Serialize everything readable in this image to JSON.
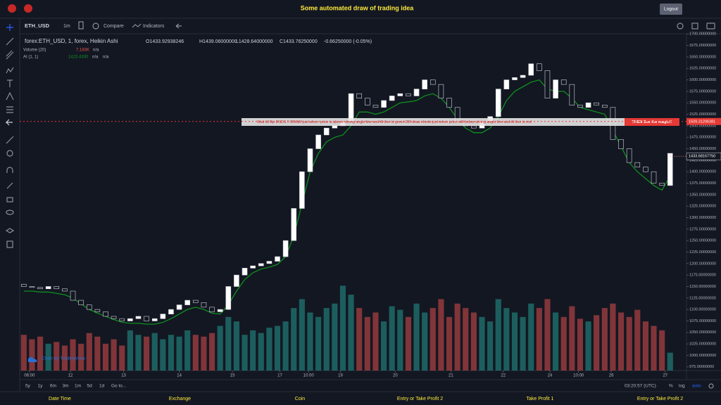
{
  "header": {
    "title": "Some automated draw of trading idea",
    "logout": "Logout"
  },
  "toolbar": {
    "symbol": "ETH_USD",
    "interval": "1m",
    "compare": "Compare",
    "indicators": "Indicators"
  },
  "legend": {
    "symbol": "forex:ETH_USD, 1, forex, Heikin Ashi",
    "open": "O1433.92938246",
    "high": "H1439.06000000",
    "low": "L1428.64000000",
    "close": "C1433.76250000",
    "change": "-0.66250000 (-0.05%)",
    "volume_name": "Volume (20)",
    "volume_value": "7.183K",
    "volume_ma": "n/a",
    "ai_name": "AI (1, 1)",
    "ai_value": "1423.4300",
    "ai_na1": "n/a",
    "ai_na2": "n/a"
  },
  "annotation": {
    "text": "Wait till flip ENDS !!   DRAW just when:  price is above strong angle line and AI line is green        DR       draw shorts just when price still below strong angle line and AI line is red",
    "callout": "THEN See the magic!!"
  },
  "chart_data": {
    "type": "candlestick",
    "ylim": [
      967,
      1705
    ],
    "yticks": [
      {
        "value": 975,
        "label": "975.00000000"
      },
      {
        "value": 1000,
        "label": "1000.00000000"
      },
      {
        "value": 1025,
        "label": "1025.00000000"
      },
      {
        "value": 1050,
        "label": "1050.00000000"
      },
      {
        "value": 1075,
        "label": "1075.00000000"
      },
      {
        "value": 1100,
        "label": "1100.00000000"
      },
      {
        "value": 1125,
        "label": "1125.00000000"
      },
      {
        "value": 1150,
        "label": "1150.00000000"
      },
      {
        "value": 1175,
        "label": "1175.00000000"
      },
      {
        "value": 1200,
        "label": "1200.00000000"
      },
      {
        "value": 1225,
        "label": "1225.00000000"
      },
      {
        "value": 1250,
        "label": "1250.00000000"
      },
      {
        "value": 1275,
        "label": "1275.00000000"
      },
      {
        "value": 1300,
        "label": "1300.00000000"
      },
      {
        "value": 1325,
        "label": "1325.00000000"
      },
      {
        "value": 1350,
        "label": "1350.00000000"
      },
      {
        "value": 1375,
        "label": "1375.00000000"
      },
      {
        "value": 1400,
        "label": "1400.00000000"
      },
      {
        "value": 1425,
        "label": "1425.00000000"
      },
      {
        "value": 1450,
        "label": "1450.00000000"
      },
      {
        "value": 1475,
        "label": "1475.00000000"
      },
      {
        "value": 1500,
        "label": "1500.00000000"
      },
      {
        "value": 1525,
        "label": "1525.00000000"
      },
      {
        "value": 1550,
        "label": "1550.00000000"
      },
      {
        "value": 1575,
        "label": "1575.00000000"
      },
      {
        "value": 1600,
        "label": "1600.00000000"
      },
      {
        "value": 1625,
        "label": "1625.00000000"
      },
      {
        "value": 1650,
        "label": "1650.00000000"
      },
      {
        "value": 1675,
        "label": "1675.00000000"
      },
      {
        "value": 1700,
        "label": "1700.00000000"
      }
    ],
    "xlim": [
      -0.5,
      81
    ],
    "xticks": [
      {
        "value": 0.7,
        "label": "06:00"
      },
      {
        "value": 5.7,
        "label": "12"
      },
      {
        "value": 12.2,
        "label": "13"
      },
      {
        "value": 19,
        "label": "14"
      },
      {
        "value": 25.5,
        "label": "15"
      },
      {
        "value": 31.3,
        "label": "17"
      },
      {
        "value": 34.8,
        "label": "10:00"
      },
      {
        "value": 38.7,
        "label": "19"
      },
      {
        "value": 45.4,
        "label": "20"
      },
      {
        "value": 52.2,
        "label": "21"
      },
      {
        "value": 58.6,
        "label": "22"
      },
      {
        "value": 64.3,
        "label": "24"
      },
      {
        "value": 67.8,
        "label": "10:00"
      },
      {
        "value": 71.8,
        "label": "26"
      },
      {
        "value": 78.4,
        "label": "27"
      }
    ],
    "open": [
      1155,
      1150,
      1148,
      1145,
      1150,
      1145,
      1140,
      1120,
      1110,
      1100,
      1095,
      1085,
      1080,
      1075,
      1080,
      1085,
      1075,
      1080,
      1090,
      1100,
      1110,
      1120,
      1115,
      1105,
      1095,
      1100,
      1150,
      1175,
      1190,
      1195,
      1200,
      1205,
      1215,
      1250,
      1320,
      1400,
      1450,
      1480,
      1495,
      1500,
      1510,
      1570,
      1560,
      1545,
      1540,
      1555,
      1565,
      1570,
      1565,
      1580,
      1600,
      1590,
      1560,
      1540,
      1510,
      1500,
      1495,
      1510,
      1520,
      1580,
      1600,
      1605,
      1610,
      1635,
      1620,
      1560,
      1600,
      1590,
      1545,
      1540,
      1550,
      1545,
      1540,
      1470,
      1450,
      1420,
      1410,
      1400,
      1375,
      1370
    ],
    "close": [
      1150,
      1148,
      1145,
      1150,
      1145,
      1140,
      1120,
      1110,
      1100,
      1095,
      1085,
      1080,
      1075,
      1080,
      1085,
      1075,
      1080,
      1090,
      1100,
      1110,
      1120,
      1115,
      1105,
      1095,
      1100,
      1150,
      1175,
      1190,
      1195,
      1200,
      1205,
      1215,
      1250,
      1320,
      1400,
      1450,
      1480,
      1495,
      1500,
      1510,
      1570,
      1560,
      1545,
      1540,
      1555,
      1565,
      1570,
      1565,
      1580,
      1600,
      1590,
      1560,
      1540,
      1510,
      1500,
      1495,
      1510,
      1520,
      1580,
      1600,
      1605,
      1610,
      1635,
      1620,
      1560,
      1600,
      1590,
      1545,
      1540,
      1550,
      1545,
      1540,
      1470,
      1450,
      1420,
      1410,
      1400,
      1375,
      1370,
      1440
    ],
    "up_color": "#ffffff",
    "down_color": "#131722",
    "series": [
      {
        "name": "AI (1, 1)",
        "color": "#0e8f1e",
        "values": [
          1140,
          1140,
          1138,
          1138,
          1135,
          1132,
          1125,
          1112,
          1100,
          1092,
          1085,
          1078,
          1072,
          1070,
          1070,
          1068,
          1068,
          1072,
          1080,
          1090,
          1100,
          1105,
          1100,
          1092,
          1090,
          1110,
          1140,
          1165,
          1180,
          1188,
          1192,
          1198,
          1215,
          1260,
          1330,
          1400,
          1440,
          1465,
          1475,
          1480,
          1500,
          1530,
          1530,
          1525,
          1530,
          1540,
          1550,
          1552,
          1555,
          1565,
          1570,
          1560,
          1540,
          1515,
          1495,
          1485,
          1485,
          1495,
          1520,
          1555,
          1575,
          1585,
          1595,
          1600,
          1580,
          1575,
          1575,
          1560,
          1540,
          1535,
          1530,
          1525,
          1490,
          1455,
          1420,
          1400,
          1385,
          1370,
          1360,
          1390
        ]
      },
      {
        "name": "Volume (20)",
        "axis": "y2",
        "color": "#26a69a",
        "down_color": "#ef5350",
        "values": [
          40,
          35,
          38,
          30,
          32,
          28,
          35,
          30,
          42,
          38,
          30,
          35,
          28,
          45,
          40,
          38,
          42,
          35,
          40,
          38,
          45,
          40,
          38,
          42,
          50,
          60,
          55,
          40,
          45,
          42,
          48,
          50,
          55,
          70,
          80,
          65,
          60,
          70,
          75,
          95,
          85,
          70,
          60,
          65,
          55,
          72,
          68,
          60,
          75,
          65,
          70,
          80,
          60,
          75,
          70,
          65,
          60,
          55,
          80,
          70,
          65,
          60,
          75,
          70,
          80,
          65,
          60,
          72,
          58,
          55,
          62,
          70,
          75,
          65,
          60,
          68,
          55,
          50,
          45,
          20
        ]
      }
    ],
    "y2lim": [
      0,
      100
    ],
    "level_line": {
      "value": 1509.31206381,
      "label": "1509.31206381",
      "color": "#e53935"
    },
    "last_price": {
      "value": 1433.6816775,
      "label": "1433.68167750"
    }
  },
  "watermark": "Chart by TradingView",
  "bottom_bar": {
    "ranges": [
      "5y",
      "1y",
      "6m",
      "3m",
      "1m",
      "5d",
      "1d"
    ],
    "goto": "Go to...",
    "clock": "03:20:57 (UTC)",
    "percent": "%",
    "log": "log",
    "auto": "auto"
  },
  "footer": [
    "Date Time",
    "Exchange",
    "Coin",
    "Entry or Take Profit 2",
    "Take Profit 1",
    "Entry or Take Profit 2"
  ]
}
